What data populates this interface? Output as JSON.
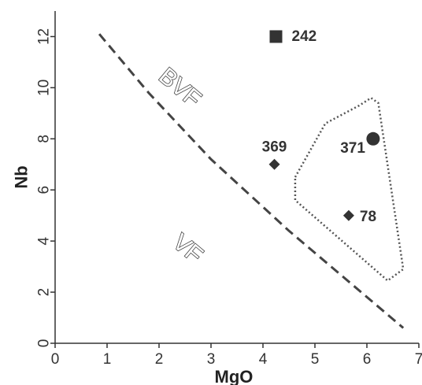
{
  "chart_data": {
    "type": "scatter",
    "title": "",
    "xlabel": "MgO",
    "ylabel": "Nb",
    "xlim": [
      0,
      7
    ],
    "ylim": [
      0,
      13
    ],
    "xticks": [
      "0",
      "1",
      "2",
      "3",
      "4",
      "5",
      "6",
      "7"
    ],
    "yticks": [
      "0",
      "2",
      "4",
      "6",
      "8",
      "10",
      "12"
    ],
    "grid": false,
    "points": [
      {
        "label": "242",
        "x": 4.25,
        "y": 12.0,
        "marker": "square"
      },
      {
        "label": "371",
        "x": 6.12,
        "y": 8.0,
        "marker": "circle"
      },
      {
        "label": "369",
        "x": 4.22,
        "y": 7.0,
        "marker": "diamond"
      },
      {
        "label": "78",
        "x": 5.65,
        "y": 5.0,
        "marker": "diamond"
      }
    ],
    "boundary_line": {
      "style": "dashed",
      "points": [
        [
          0.85,
          12.1
        ],
        [
          1.8,
          9.8
        ],
        [
          3.0,
          7.2
        ],
        [
          4.5,
          4.4
        ],
        [
          6.7,
          0.6
        ]
      ]
    },
    "field": {
      "style": "dotted",
      "points": [
        [
          4.62,
          6.5
        ],
        [
          5.2,
          8.6
        ],
        [
          5.85,
          9.3
        ],
        [
          6.08,
          9.6
        ],
        [
          6.22,
          9.4
        ],
        [
          6.7,
          2.9
        ],
        [
          6.4,
          2.45
        ],
        [
          4.62,
          5.6
        ]
      ]
    },
    "region_labels": [
      {
        "text": "BVF",
        "x": 2.4,
        "y": 10.0
      },
      {
        "text": "VF",
        "x": 2.55,
        "y": 3.7
      }
    ]
  }
}
